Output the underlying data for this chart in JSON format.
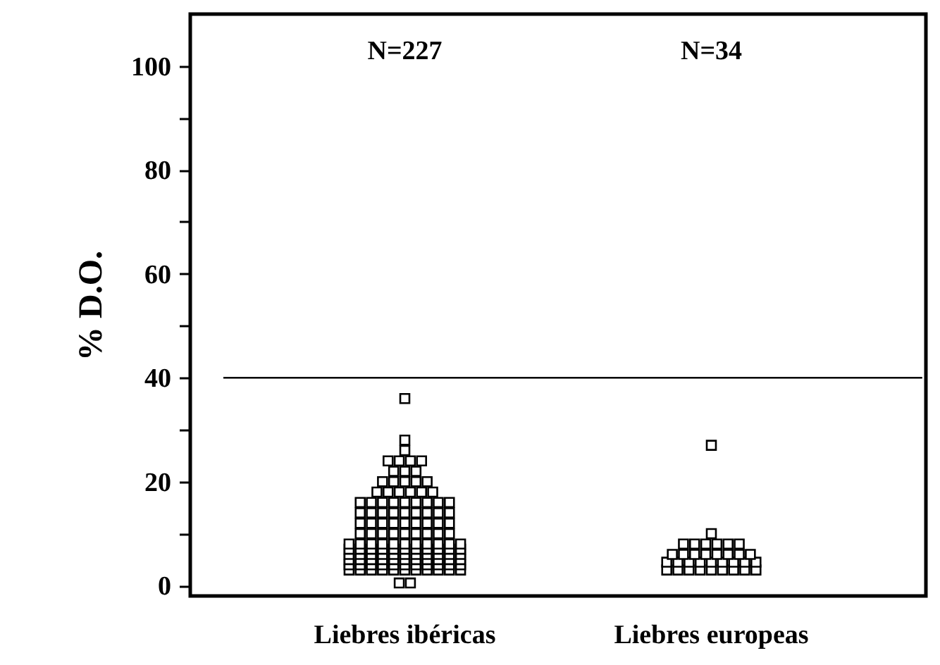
{
  "chart_data": {
    "type": "scatter",
    "ylabel": "% D.O.",
    "categories": [
      "Liebres ibéricas",
      "Liebres europeas"
    ],
    "ylim": [
      -2,
      110
    ],
    "yticks": [
      0,
      {
        "value": 10,
        "label": null
      },
      20,
      {
        "value": 30,
        "label": null
      },
      40,
      {
        "value": 50,
        "label": null
      },
      60,
      {
        "value": 70,
        "label": null
      },
      80,
      {
        "value": 90,
        "label": null
      },
      100
    ],
    "grid": false,
    "marker": "square",
    "ref_lines": [
      {
        "axis": "y",
        "value": 40,
        "color": "#000000"
      }
    ],
    "annotations": [
      "N=227",
      "N=34"
    ],
    "series": [
      {
        "color": "#000000",
        "x": [
          "Liebres ibéricas",
          "Liebres ibéricas",
          "Liebres ibéricas",
          "Liebres ibéricas",
          "Liebres ibéricas",
          "Liebres ibéricas",
          "Liebres ibéricas",
          "Liebres ibéricas",
          "Liebres ibéricas",
          "Liebres ibéricas",
          "Liebres ibéricas",
          "Liebres ibéricas",
          "Liebres ibéricas",
          "Liebres ibéricas",
          "Liebres ibéricas",
          "Liebres ibéricas",
          "Liebres ibéricas",
          "Liebres ibéricas",
          "Liebres ibéricas",
          "Liebres ibéricas",
          "Liebres ibéricas",
          "Liebres ibéricas",
          "Liebres ibéricas",
          "Liebres ibéricas",
          "Liebres ibéricas",
          "Liebres ibéricas",
          "Liebres ibéricas",
          "Liebres ibéricas",
          "Liebres ibéricas",
          "Liebres ibéricas",
          "Liebres ibéricas",
          "Liebres ibéricas",
          "Liebres ibéricas",
          "Liebres ibéricas",
          "Liebres ibéricas",
          "Liebres ibéricas",
          "Liebres ibéricas",
          "Liebres ibéricas",
          "Liebres ibéricas",
          "Liebres ibéricas",
          "Liebres ibéricas",
          "Liebres ibéricas",
          "Liebres ibéricas",
          "Liebres ibéricas",
          "Liebres ibéricas",
          "Liebres ibéricas",
          "Liebres ibéricas",
          "Liebres ibéricas",
          "Liebres ibéricas",
          "Liebres ibéricas",
          "Liebres ibéricas",
          "Liebres ibéricas",
          "Liebres ibéricas",
          "Liebres ibéricas",
          "Liebres ibéricas",
          "Liebres ibéricas",
          "Liebres ibéricas",
          "Liebres ibéricas",
          "Liebres ibéricas",
          "Liebres ibéricas",
          "Liebres ibéricas",
          "Liebres ibéricas",
          "Liebres ibéricas",
          "Liebres ibéricas",
          "Liebres ibéricas",
          "Liebres ibéricas",
          "Liebres ibéricas",
          "Liebres ibéricas",
          "Liebres ibéricas",
          "Liebres ibéricas",
          "Liebres ibéricas",
          "Liebres ibéricas",
          "Liebres ibéricas",
          "Liebres ibéricas",
          "Liebres ibéricas",
          "Liebres ibéricas",
          "Liebres ibéricas",
          "Liebres ibéricas",
          "Liebres ibéricas",
          "Liebres ibéricas",
          "Liebres ibéricas",
          "Liebres ibéricas",
          "Liebres ibéricas",
          "Liebres ibéricas",
          "Liebres ibéricas",
          "Liebres ibéricas",
          "Liebres ibéricas",
          "Liebres ibéricas",
          "Liebres ibéricas",
          "Liebres ibéricas",
          "Liebres ibéricas",
          "Liebres ibéricas",
          "Liebres ibéricas",
          "Liebres ibéricas",
          "Liebres ibéricas",
          "Liebres ibéricas",
          "Liebres ibéricas",
          "Liebres ibéricas",
          "Liebres ibéricas",
          "Liebres ibéricas",
          "Liebres ibéricas",
          "Liebres ibéricas",
          "Liebres ibéricas",
          "Liebres ibéricas",
          "Liebres ibéricas",
          "Liebres ibéricas",
          "Liebres ibéricas",
          "Liebres ibéricas",
          "Liebres ibéricas",
          "Liebres ibéricas",
          "Liebres ibéricas",
          "Liebres ibéricas",
          "Liebres ibéricas",
          "Liebres ibéricas",
          "Liebres ibéricas",
          "Liebres ibéricas",
          "Liebres ibéricas",
          "Liebres ibéricas",
          "Liebres ibéricas",
          "Liebres ibéricas",
          "Liebres ibéricas",
          "Liebres ibéricas",
          "Liebres ibéricas",
          "Liebres ibéricas",
          "Liebres ibéricas"
        ],
        "values": [
          0.5,
          0.5,
          3,
          3,
          3,
          3,
          3,
          3,
          3,
          3,
          3,
          3,
          3,
          4,
          4,
          4,
          4,
          4,
          4,
          4,
          4,
          4,
          4,
          4,
          5,
          5,
          5,
          5,
          5,
          5,
          5,
          5,
          5,
          5,
          5,
          6,
          6,
          6,
          6,
          6,
          6,
          6,
          6,
          6,
          6,
          6,
          7,
          7,
          7,
          7,
          7,
          7,
          7,
          7,
          7,
          7,
          7,
          8,
          8,
          8,
          8,
          8,
          8,
          8,
          8,
          8,
          8,
          8,
          10,
          10,
          10,
          10,
          10,
          10,
          10,
          10,
          10,
          12,
          12,
          12,
          12,
          12,
          12,
          12,
          12,
          12,
          14,
          14,
          14,
          14,
          14,
          14,
          14,
          14,
          14,
          16,
          16,
          16,
          16,
          16,
          16,
          16,
          16,
          16,
          18,
          18,
          18,
          18,
          18,
          18,
          20,
          20,
          20,
          20,
          20,
          22,
          22,
          22,
          24,
          24,
          24,
          24,
          26,
          28,
          36
        ]
      },
      {
        "color": "#000000",
        "x": [
          "Liebres europeas",
          "Liebres europeas",
          "Liebres europeas",
          "Liebres europeas",
          "Liebres europeas",
          "Liebres europeas",
          "Liebres europeas",
          "Liebres europeas",
          "Liebres europeas",
          "Liebres europeas",
          "Liebres europeas",
          "Liebres europeas",
          "Liebres europeas",
          "Liebres europeas",
          "Liebres europeas",
          "Liebres europeas",
          "Liebres europeas",
          "Liebres europeas",
          "Liebres europeas",
          "Liebres europeas",
          "Liebres europeas",
          "Liebres europeas",
          "Liebres europeas",
          "Liebres europeas",
          "Liebres europeas",
          "Liebres europeas",
          "Liebres europeas",
          "Liebres europeas",
          "Liebres europeas",
          "Liebres europeas",
          "Liebres europeas",
          "Liebres europeas",
          "Liebres europeas",
          "Liebres europeas"
        ],
        "values": [
          3,
          3,
          3,
          3,
          3,
          3,
          3,
          3,
          3,
          4.5,
          4.5,
          4.5,
          4.5,
          4.5,
          4.5,
          4.5,
          4.5,
          4.5,
          6,
          6,
          6,
          6,
          6,
          6,
          6,
          6,
          8,
          8,
          8,
          8,
          8,
          8,
          10,
          27
        ]
      }
    ]
  }
}
